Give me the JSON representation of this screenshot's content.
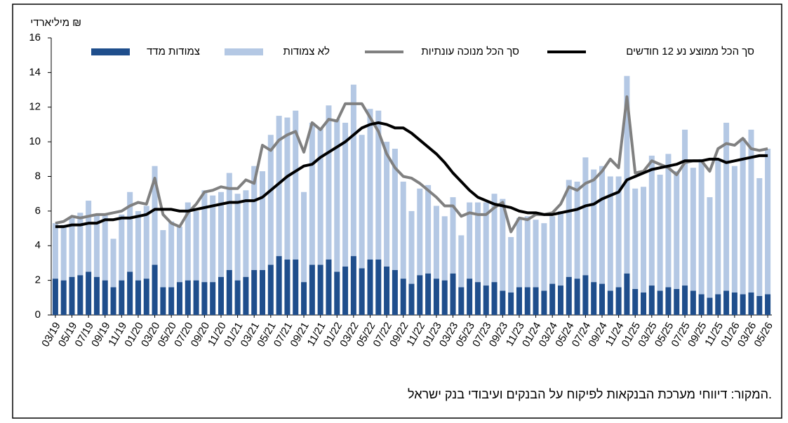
{
  "chart_data": {
    "type": "stacked_bar_line",
    "y_label": "מיליארדי ₪",
    "source": "המקור: דיווחי מערכת הבנקאות לפיקוח על הבנקים ועיבודי בנק ישראל.",
    "categories": [
      "03/19",
      null,
      "05/19",
      null,
      "07/19",
      null,
      "09/19",
      null,
      "11/19",
      null,
      "01/20",
      null,
      "03/20",
      null,
      "05/20",
      null,
      "07/20",
      null,
      "09/20",
      null,
      "11/20",
      null,
      "01/21",
      null,
      "03/21",
      null,
      "05/21",
      null,
      "07/21",
      null,
      "09/21",
      null,
      "11/21",
      null,
      "01/22",
      null,
      "03/22",
      null,
      "05/22",
      null,
      "07/22",
      null,
      "09/22",
      null,
      "11/22",
      null,
      "01/23",
      null,
      "03/23",
      null,
      "05/23",
      null,
      "07/23",
      null,
      "09/23",
      null,
      "11/23",
      null,
      "01/24",
      null,
      "03/24",
      null,
      "05/24",
      null,
      "07/24",
      null,
      "09/24",
      null,
      "11/24",
      null,
      "01/25",
      null,
      "03/25",
      null,
      "05/25",
      null,
      "07/25",
      null,
      "09/25",
      null,
      "11/25",
      null,
      "01/26",
      null,
      "03/26",
      null,
      "05/26"
    ],
    "ylim": [
      0,
      16
    ],
    "yticks": [
      0,
      2,
      4,
      6,
      8,
      10,
      12,
      14,
      16
    ],
    "series": [
      {
        "name": "צמודות מדד",
        "kind": "bar",
        "color": "#1f4e8c",
        "values": [
          2.1,
          2.0,
          2.2,
          2.3,
          2.5,
          2.2,
          2.0,
          1.6,
          2.0,
          2.5,
          2.0,
          2.1,
          2.9,
          1.6,
          1.6,
          1.9,
          2.0,
          2.0,
          1.9,
          1.9,
          2.2,
          2.6,
          2.0,
          2.2,
          2.6,
          2.6,
          2.9,
          3.4,
          3.2,
          3.2,
          1.9,
          2.9,
          2.9,
          3.2,
          2.5,
          2.8,
          3.4,
          2.7,
          3.2,
          3.2,
          2.8,
          2.6,
          2.1,
          1.8,
          2.3,
          2.4,
          2.1,
          2.0,
          2.4,
          1.6,
          2.1,
          1.9,
          1.7,
          1.9,
          1.4,
          1.3,
          1.6,
          1.6,
          1.6,
          1.4,
          1.8,
          1.7,
          2.2,
          2.1,
          2.3,
          1.9,
          1.8,
          1.4,
          1.6,
          2.4,
          1.5,
          1.3,
          1.7,
          1.4,
          1.6,
          1.5,
          1.7,
          1.4,
          1.2,
          1.0,
          1.2,
          1.4,
          1.3,
          1.2,
          1.3,
          1.1,
          1.2
        ]
      },
      {
        "name": "לא צמודות",
        "kind": "bar",
        "color": "#b4c8e4",
        "values": [
          3.2,
          3.2,
          3.4,
          3.6,
          4.1,
          3.6,
          3.8,
          2.8,
          3.8,
          4.6,
          4.0,
          4.2,
          5.7,
          3.3,
          3.8,
          3.2,
          4.5,
          4.0,
          5.3,
          5.0,
          4.9,
          5.6,
          5.0,
          5.0,
          6.0,
          5.7,
          7.5,
          8.1,
          8.2,
          8.6,
          5.2,
          8.2,
          7.9,
          8.9,
          8.8,
          8.3,
          9.9,
          7.7,
          8.7,
          8.6,
          7.2,
          7.0,
          5.6,
          4.2,
          5.0,
          5.1,
          4.2,
          3.7,
          4.4,
          3.0,
          4.4,
          4.6,
          4.8,
          5.1,
          5.3,
          3.2,
          4.0,
          4.1,
          3.9,
          3.9,
          3.9,
          4.3,
          5.6,
          5.6,
          6.8,
          6.5,
          6.8,
          6.6,
          6.4,
          11.4,
          5.8,
          6.1,
          7.5,
          6.7,
          7.7,
          6.8,
          9.0,
          7.1,
          7.8,
          5.8,
          7.8,
          9.7,
          7.3,
          9.0,
          9.4,
          6.8,
          8.4
        ]
      },
      {
        "name": "סך הכל מנוכה עונתיות",
        "kind": "line",
        "color": "#808080",
        "values": [
          5.3,
          5.4,
          5.7,
          5.6,
          5.7,
          5.8,
          5.8,
          5.9,
          6.0,
          6.3,
          6.5,
          6.4,
          7.9,
          5.8,
          5.3,
          5.1,
          5.9,
          6.4,
          7.1,
          7.2,
          7.4,
          7.3,
          7.3,
          7.8,
          7.6,
          9.8,
          9.5,
          10.1,
          10.4,
          10.6,
          9.4,
          11.1,
          10.7,
          11.3,
          11.2,
          12.2,
          12.2,
          12.2,
          11.4,
          10.6,
          9.3,
          8.5,
          8.0,
          7.9,
          7.6,
          7.2,
          6.8,
          6.3,
          6.3,
          5.7,
          5.9,
          5.8,
          5.8,
          6.2,
          6.5,
          4.8,
          5.6,
          5.5,
          5.8,
          5.8,
          5.9,
          6.4,
          7.4,
          7.2,
          7.6,
          7.8,
          8.3,
          9.0,
          8.5,
          12.6,
          8.2,
          8.3,
          8.9,
          8.7,
          8.5,
          8.1,
          8.8,
          8.9,
          8.9,
          8.3,
          9.6,
          9.9,
          9.8,
          10.2,
          9.6,
          9.5,
          9.6
        ]
      },
      {
        "name": "סך הכל ממוצע נע 12 חודשים",
        "kind": "line",
        "color": "#000000",
        "values": [
          5.1,
          5.1,
          5.2,
          5.2,
          5.3,
          5.3,
          5.5,
          5.5,
          5.6,
          5.6,
          5.7,
          5.8,
          6.1,
          6.1,
          6.1,
          6.0,
          6.0,
          6.1,
          6.2,
          6.3,
          6.4,
          6.5,
          6.5,
          6.6,
          6.6,
          6.8,
          7.2,
          7.6,
          8.0,
          8.3,
          8.6,
          8.7,
          9.1,
          9.4,
          9.7,
          10.0,
          10.4,
          10.8,
          11.0,
          11.1,
          11.0,
          10.8,
          10.8,
          10.5,
          10.1,
          9.7,
          9.3,
          8.8,
          8.2,
          7.7,
          7.2,
          6.8,
          6.6,
          6.4,
          6.3,
          6.2,
          6.0,
          5.9,
          5.9,
          5.8,
          5.8,
          5.9,
          6.0,
          6.1,
          6.3,
          6.4,
          6.7,
          6.9,
          7.1,
          7.8,
          8.0,
          8.2,
          8.4,
          8.5,
          8.6,
          8.7,
          8.9,
          8.9,
          8.9,
          9.0,
          9.0,
          8.8,
          8.9,
          9.0,
          9.1,
          9.2,
          9.2
        ]
      }
    ]
  }
}
